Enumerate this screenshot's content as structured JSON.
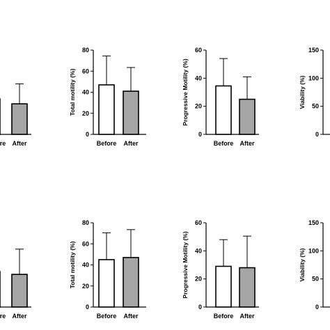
{
  "chart_data": [
    {
      "type": "bar",
      "panel": "row1-col1",
      "categories": [
        "Before",
        "After"
      ],
      "values": [
        null,
        29
      ],
      "errors": [
        null,
        19
      ],
      "ylabel": "",
      "ylim": [
        0,
        80
      ],
      "yticks": [],
      "colors": [
        "#ffffff",
        "#a6a6a6"
      ]
    },
    {
      "type": "bar",
      "panel": "row1-col2",
      "categories": [
        "Before",
        "After"
      ],
      "values": [
        47,
        41
      ],
      "errors": [
        27.5,
        22.5
      ],
      "ylabel": "Total motility (%)",
      "ylim": [
        0,
        80
      ],
      "yticks": [
        0,
        20,
        40,
        60,
        80
      ],
      "colors": [
        "#ffffff",
        "#a6a6a6"
      ]
    },
    {
      "type": "bar",
      "panel": "row1-col3",
      "categories": [
        "Before",
        "After"
      ],
      "values": [
        34.5,
        25
      ],
      "errors": [
        19.5,
        16
      ],
      "ylabel": "Progressive Motility (%)",
      "ylim": [
        0,
        60
      ],
      "yticks": [
        0,
        20,
        40,
        60
      ],
      "colors": [
        "#ffffff",
        "#a6a6a6"
      ]
    },
    {
      "type": "bar",
      "panel": "row1-col4",
      "categories": [],
      "values": [],
      "ylabel": "Viability (%)",
      "ylim": [
        0,
        150
      ],
      "yticks": [
        0,
        50,
        100,
        150
      ],
      "colors": [
        "#ffffff",
        "#a6a6a6"
      ]
    },
    {
      "type": "bar",
      "panel": "row2-col1",
      "categories": [
        "Before",
        "After"
      ],
      "values": [
        null,
        31
      ],
      "errors": [
        null,
        24
      ],
      "ylabel": "",
      "ylim": [
        0,
        80
      ],
      "yticks": [],
      "colors": [
        "#ffffff",
        "#a6a6a6"
      ]
    },
    {
      "type": "bar",
      "panel": "row2-col2",
      "categories": [
        "Before",
        "After"
      ],
      "values": [
        45,
        47
      ],
      "errors": [
        25.5,
        26.5
      ],
      "ylabel": "Total motility (%)",
      "ylim": [
        0,
        80
      ],
      "yticks": [
        0,
        20,
        40,
        60,
        80
      ],
      "colors": [
        "#ffffff",
        "#a6a6a6"
      ]
    },
    {
      "type": "bar",
      "panel": "row2-col3",
      "categories": [
        "Before",
        "After"
      ],
      "values": [
        29,
        28
      ],
      "errors": [
        19,
        22.5
      ],
      "ylabel": "Progressive Motility (%)",
      "ylim": [
        0,
        60
      ],
      "yticks": [
        0,
        20,
        40,
        60
      ],
      "colors": [
        "#ffffff",
        "#a6a6a6"
      ]
    },
    {
      "type": "bar",
      "panel": "row2-col4",
      "categories": [],
      "values": [],
      "ylabel": "Viability (%)",
      "ylim": [
        0,
        150
      ],
      "yticks": [
        0,
        50,
        100,
        150
      ],
      "colors": [
        "#ffffff",
        "#a6a6a6"
      ]
    }
  ]
}
